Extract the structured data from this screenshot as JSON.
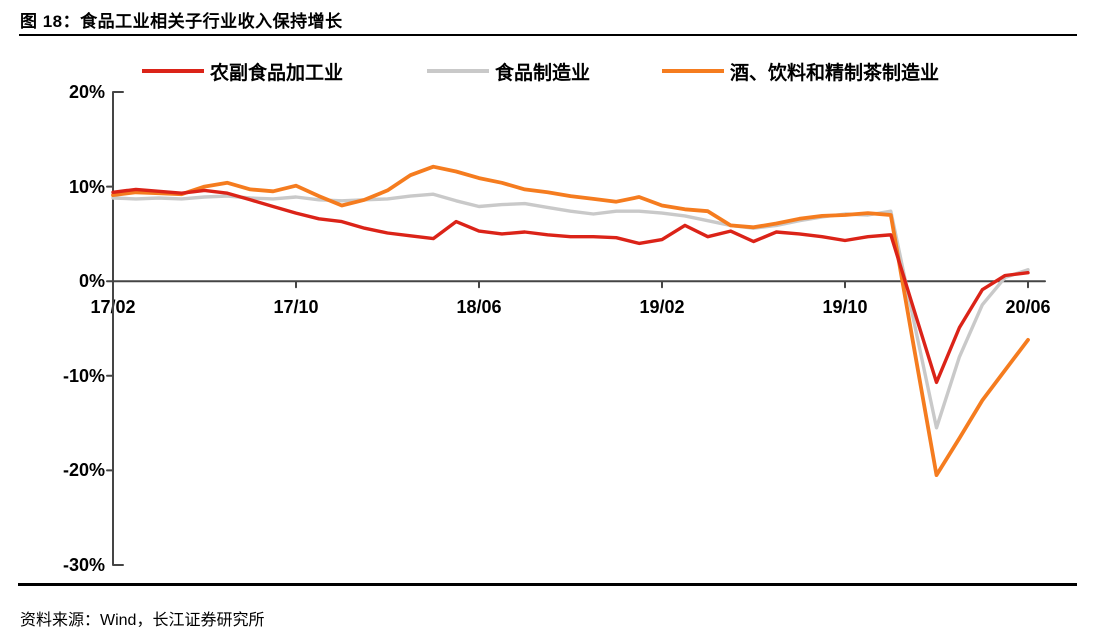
{
  "title": "图 18：食品工业相关子行业收入保持增长",
  "source": "资料来源：Wind，长江证券研究所",
  "colors": {
    "red": "#DB2318",
    "gray": "#C9C9C9",
    "orange": "#F57C1F",
    "axis": "#454545",
    "text": "#000000"
  },
  "chart_data": {
    "type": "line",
    "title": "食品工业相关子行业收入保持增长",
    "unit": "%",
    "grid": false,
    "legend_position": "top",
    "ylim": [
      -30,
      20
    ],
    "yticks": [
      {
        "label": "20%",
        "value": 20
      },
      {
        "label": "10%",
        "value": 10
      },
      {
        "label": "0%",
        "value": 0
      },
      {
        "label": "-10%",
        "value": -10
      },
      {
        "label": "-20%",
        "value": -20
      },
      {
        "label": "-30%",
        "value": -30
      }
    ],
    "x": [
      "17/02",
      "17/03",
      "17/04",
      "17/05",
      "17/06",
      "17/07",
      "17/08",
      "17/09",
      "17/10",
      "17/11",
      "17/12",
      "18/01",
      "18/02",
      "18/03",
      "18/04",
      "18/05",
      "18/06",
      "18/07",
      "18/08",
      "18/09",
      "18/10",
      "18/11",
      "18/12",
      "19/01",
      "19/02",
      "19/03",
      "19/04",
      "19/05",
      "19/06",
      "19/07",
      "19/08",
      "19/09",
      "19/10",
      "19/11",
      "19/12",
      "20/01",
      "20/02",
      "20/03",
      "20/04",
      "20/05",
      "20/06"
    ],
    "xticks": [
      {
        "label": "17/02",
        "index": 0
      },
      {
        "label": "17/10",
        "index": 8
      },
      {
        "label": "18/06",
        "index": 16
      },
      {
        "label": "19/02",
        "index": 24
      },
      {
        "label": "19/10",
        "index": 32
      },
      {
        "label": "20/06",
        "index": 40
      }
    ],
    "series": [
      {
        "name": "农副食品加工业",
        "color": "#DB2318",
        "stroke_width": 3.4,
        "values": [
          9.4,
          9.7,
          9.5,
          9.3,
          9.6,
          9.3,
          8.6,
          7.9,
          7.2,
          6.6,
          6.3,
          5.6,
          5.1,
          4.8,
          4.5,
          6.3,
          5.3,
          5.0,
          5.2,
          4.9,
          4.7,
          4.7,
          4.6,
          4.0,
          4.4,
          5.9,
          4.7,
          5.3,
          4.2,
          5.2,
          5.0,
          4.7,
          4.3,
          4.7,
          4.9,
          -2.9,
          -10.7,
          -4.9,
          -0.9,
          0.6,
          0.9
        ]
      },
      {
        "name": "食品制造业",
        "color": "#C9C9C9",
        "stroke_width": 3.4,
        "values": [
          8.8,
          8.7,
          8.8,
          8.7,
          8.9,
          9.0,
          8.8,
          8.7,
          8.9,
          8.6,
          8.5,
          8.6,
          8.7,
          9.0,
          9.2,
          8.5,
          7.9,
          8.1,
          8.2,
          7.8,
          7.4,
          7.1,
          7.4,
          7.4,
          7.2,
          6.9,
          6.4,
          5.9,
          5.6,
          5.9,
          6.4,
          6.8,
          7.1,
          7.0,
          7.4,
          -4.1,
          -15.5,
          -8.0,
          -2.5,
          0.4,
          1.2
        ]
      },
      {
        "name": "酒、饮料和精制茶制造业",
        "color": "#F57C1F",
        "stroke_width": 3.8,
        "values": [
          9.1,
          9.4,
          9.3,
          9.2,
          10.0,
          10.4,
          9.7,
          9.5,
          10.1,
          9.0,
          8.0,
          8.6,
          9.6,
          11.2,
          12.1,
          11.6,
          10.9,
          10.4,
          9.7,
          9.4,
          9.0,
          8.7,
          8.4,
          8.9,
          8.0,
          7.6,
          7.4,
          5.9,
          5.7,
          6.1,
          6.6,
          6.9,
          7.0,
          7.2,
          7.0,
          -6.8,
          -20.5,
          -16.6,
          -12.6,
          -9.4,
          -6.2
        ]
      }
    ]
  }
}
